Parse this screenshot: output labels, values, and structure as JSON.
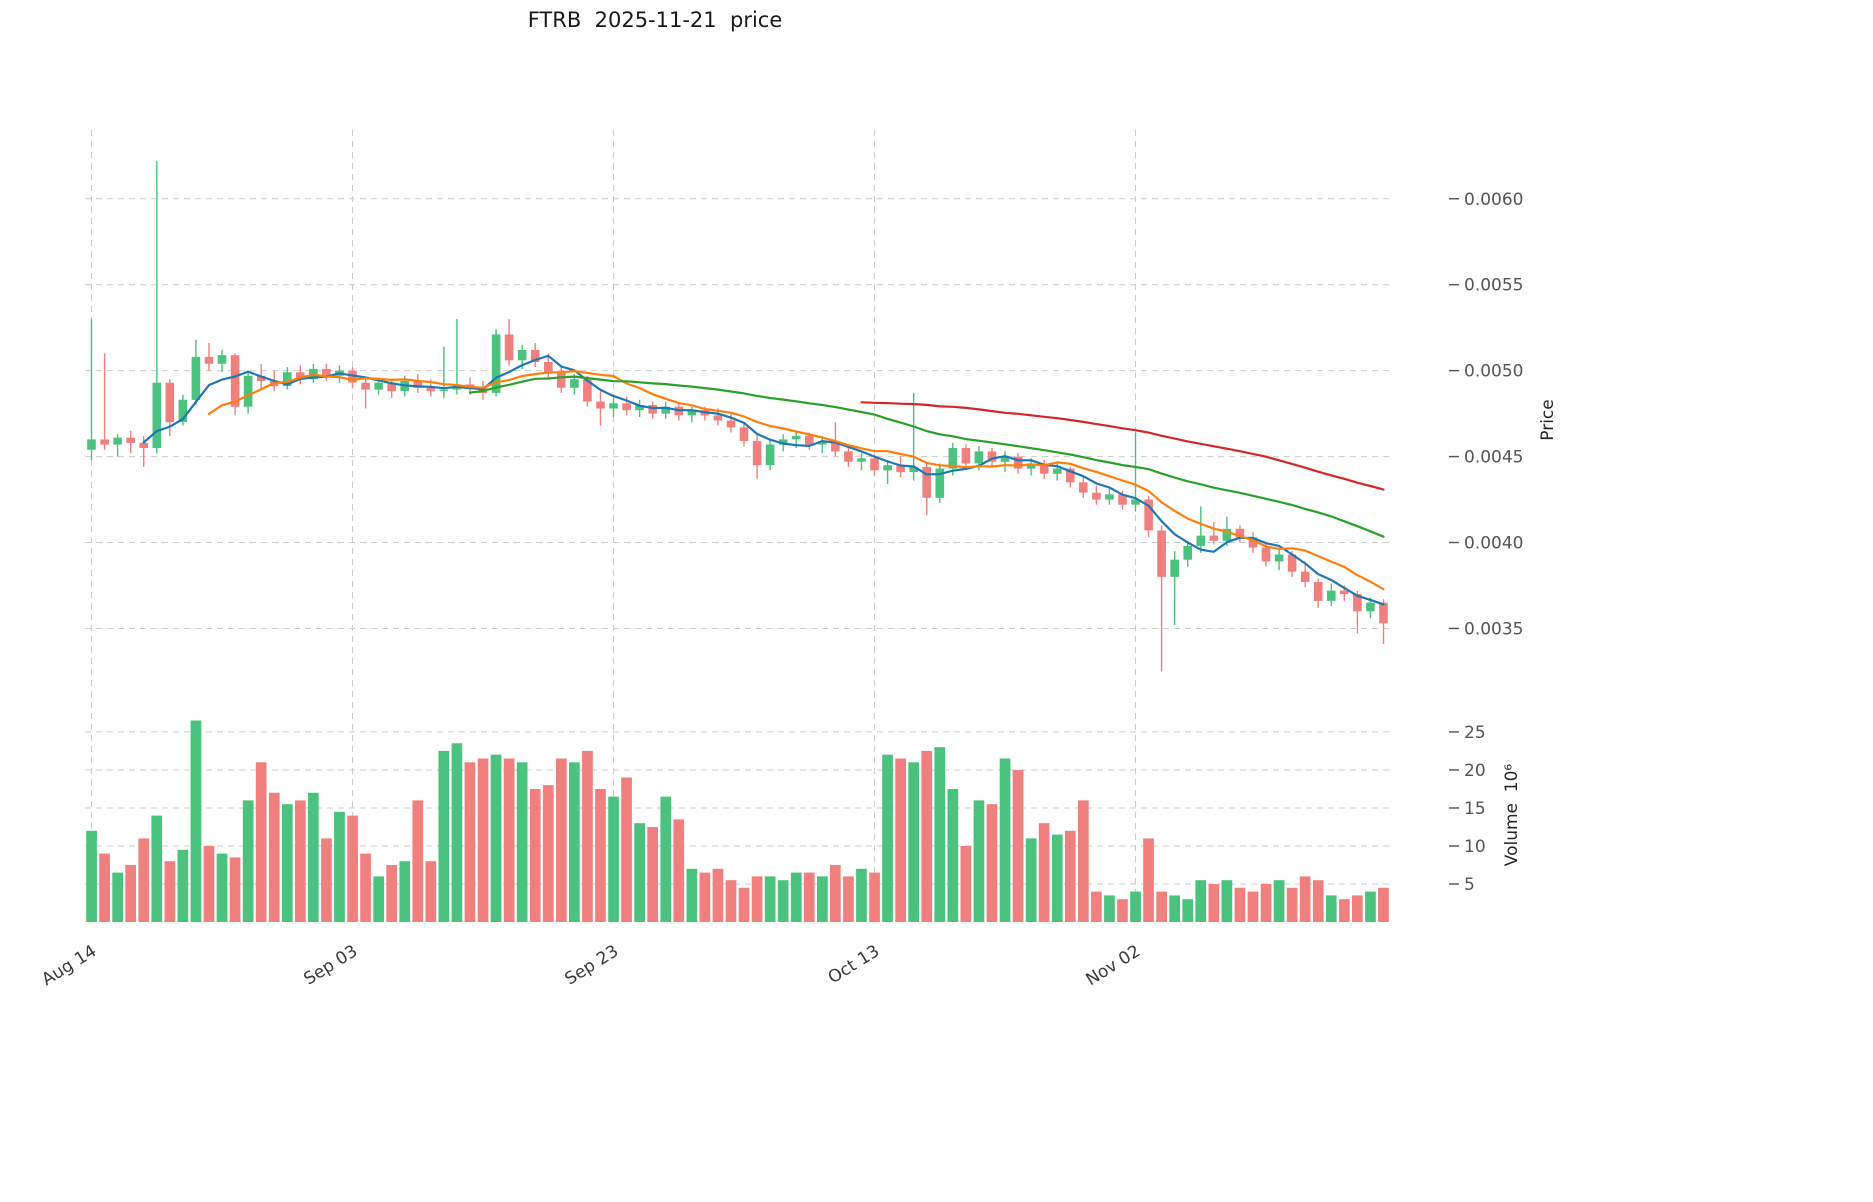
{
  "title": "FTRB  2025-11-21  price",
  "chart_data": {
    "type": "candlestick",
    "title": "FTRB  2025-11-21  price",
    "ylabel_price": "Price",
    "ylabel_volume": "Volume  10⁶",
    "legend_position": "none",
    "grid": "dashed",
    "grid_color": "#cccccc",
    "tick_color": "#555555",
    "up_color": "#4bc27d",
    "down_color": "#f0807e",
    "price_range": [
      0.0032,
      0.0064
    ],
    "price_ticks": [
      0.0035,
      0.004,
      0.0045,
      0.005,
      0.0055,
      0.006
    ],
    "volume_range": [
      0,
      29.2
    ],
    "volume_ticks": [
      5,
      10,
      15,
      20,
      25
    ],
    "volume_units": "millions",
    "xticks": [
      {
        "index": 0,
        "label": "Aug 14"
      },
      {
        "index": 20,
        "label": "Sep 03"
      },
      {
        "index": 40,
        "label": "Sep 23"
      },
      {
        "index": 60,
        "label": "Oct 13"
      },
      {
        "index": 80,
        "label": "Nov 02"
      }
    ],
    "mav": [
      {
        "window": 5,
        "color": "#1f77b4"
      },
      {
        "window": 10,
        "color": "#ff7f0e"
      },
      {
        "window": 30,
        "color": "#2ca02c"
      },
      {
        "window": 60,
        "color": "#d62728"
      }
    ],
    "dates": [
      "2025-08-14",
      "2025-08-15",
      "2025-08-16",
      "2025-08-17",
      "2025-08-18",
      "2025-08-19",
      "2025-08-20",
      "2025-08-21",
      "2025-08-22",
      "2025-08-23",
      "2025-08-24",
      "2025-08-25",
      "2025-08-26",
      "2025-08-27",
      "2025-08-28",
      "2025-08-29",
      "2025-08-30",
      "2025-08-31",
      "2025-09-01",
      "2025-09-02",
      "2025-09-03",
      "2025-09-04",
      "2025-09-05",
      "2025-09-06",
      "2025-09-07",
      "2025-09-08",
      "2025-09-09",
      "2025-09-10",
      "2025-09-11",
      "2025-09-12",
      "2025-09-13",
      "2025-09-14",
      "2025-09-15",
      "2025-09-16",
      "2025-09-17",
      "2025-09-18",
      "2025-09-19",
      "2025-09-20",
      "2025-09-21",
      "2025-09-22",
      "2025-09-23",
      "2025-09-24",
      "2025-09-25",
      "2025-09-26",
      "2025-09-27",
      "2025-09-28",
      "2025-09-29",
      "2025-09-30",
      "2025-10-01",
      "2025-10-02",
      "2025-10-03",
      "2025-10-04",
      "2025-10-05",
      "2025-10-06",
      "2025-10-07",
      "2025-10-08",
      "2025-10-09",
      "2025-10-10",
      "2025-10-11",
      "2025-10-12",
      "2025-10-13",
      "2025-10-14",
      "2025-10-15",
      "2025-10-16",
      "2025-10-17",
      "2025-10-18",
      "2025-10-19",
      "2025-10-20",
      "2025-10-21",
      "2025-10-22",
      "2025-10-23",
      "2025-10-24",
      "2025-10-25",
      "2025-10-26",
      "2025-10-27",
      "2025-10-28",
      "2025-10-29",
      "2025-10-30",
      "2025-10-31",
      "2025-11-01",
      "2025-11-02",
      "2025-11-03",
      "2025-11-04",
      "2025-11-05",
      "2025-11-06",
      "2025-11-07",
      "2025-11-08",
      "2025-11-09",
      "2025-11-10",
      "2025-11-11",
      "2025-11-12",
      "2025-11-13",
      "2025-11-14",
      "2025-11-15",
      "2025-11-16",
      "2025-11-17",
      "2025-11-18",
      "2025-11-19",
      "2025-11-20",
      "2025-11-21"
    ],
    "ohlc": [
      [
        0.00454,
        0.0053,
        0.00448,
        0.0046
      ],
      [
        0.0046,
        0.0051,
        0.00454,
        0.00457
      ],
      [
        0.00457,
        0.00463,
        0.0045,
        0.00461
      ],
      [
        0.00461,
        0.00465,
        0.00452,
        0.00458
      ],
      [
        0.00458,
        0.00462,
        0.00444,
        0.00455
      ],
      [
        0.00455,
        0.00622,
        0.00452,
        0.00493
      ],
      [
        0.00493,
        0.00495,
        0.00462,
        0.0047
      ],
      [
        0.0047,
        0.00486,
        0.00468,
        0.00483
      ],
      [
        0.00483,
        0.00518,
        0.0048,
        0.00508
      ],
      [
        0.00508,
        0.00516,
        0.005,
        0.00504
      ],
      [
        0.00504,
        0.00512,
        0.00499,
        0.00509
      ],
      [
        0.00509,
        0.0051,
        0.00474,
        0.00479
      ],
      [
        0.00479,
        0.005,
        0.00475,
        0.00497
      ],
      [
        0.00497,
        0.00504,
        0.00489,
        0.00494
      ],
      [
        0.00494,
        0.005,
        0.00488,
        0.00491
      ],
      [
        0.00491,
        0.00502,
        0.00489,
        0.00499
      ],
      [
        0.00499,
        0.00503,
        0.00492,
        0.00495
      ],
      [
        0.00495,
        0.00504,
        0.00493,
        0.00501
      ],
      [
        0.00501,
        0.00504,
        0.00494,
        0.00497
      ],
      [
        0.00497,
        0.00503,
        0.00493,
        0.005
      ],
      [
        0.005,
        0.00502,
        0.0049,
        0.00493
      ],
      [
        0.00493,
        0.00496,
        0.00478,
        0.00489
      ],
      [
        0.00489,
        0.00496,
        0.00486,
        0.00493
      ],
      [
        0.00493,
        0.00495,
        0.00484,
        0.00488
      ],
      [
        0.00488,
        0.00497,
        0.00485,
        0.00494
      ],
      [
        0.00494,
        0.00498,
        0.00487,
        0.0049
      ],
      [
        0.0049,
        0.00495,
        0.00485,
        0.00488
      ],
      [
        0.00488,
        0.00514,
        0.00484,
        0.00489
      ],
      [
        0.00489,
        0.0053,
        0.00486,
        0.00492
      ],
      [
        0.00492,
        0.00496,
        0.00486,
        0.0049
      ],
      [
        0.0049,
        0.00494,
        0.00483,
        0.00487
      ],
      [
        0.00487,
        0.00524,
        0.00485,
        0.00521
      ],
      [
        0.00521,
        0.0053,
        0.00503,
        0.00506
      ],
      [
        0.00506,
        0.00515,
        0.00501,
        0.00512
      ],
      [
        0.00512,
        0.00516,
        0.00502,
        0.00505
      ],
      [
        0.00505,
        0.0051,
        0.00496,
        0.00499
      ],
      [
        0.00499,
        0.00502,
        0.00487,
        0.0049
      ],
      [
        0.0049,
        0.00498,
        0.00486,
        0.00495
      ],
      [
        0.00495,
        0.00497,
        0.00479,
        0.00482
      ],
      [
        0.00482,
        0.00488,
        0.00468,
        0.00478
      ],
      [
        0.00478,
        0.00484,
        0.00473,
        0.00481
      ],
      [
        0.00481,
        0.00485,
        0.00474,
        0.00477
      ],
      [
        0.00477,
        0.00483,
        0.00473,
        0.0048
      ],
      [
        0.0048,
        0.00482,
        0.00472,
        0.00475
      ],
      [
        0.00475,
        0.00482,
        0.00472,
        0.00479
      ],
      [
        0.00479,
        0.00481,
        0.00471,
        0.00474
      ],
      [
        0.00474,
        0.00479,
        0.0047,
        0.00477
      ],
      [
        0.00477,
        0.00479,
        0.00471,
        0.00474
      ],
      [
        0.00474,
        0.00478,
        0.00468,
        0.00471
      ],
      [
        0.00471,
        0.00475,
        0.00464,
        0.00467
      ],
      [
        0.00467,
        0.0047,
        0.00456,
        0.00459
      ],
      [
        0.00459,
        0.00463,
        0.00437,
        0.00445
      ],
      [
        0.00445,
        0.0046,
        0.00442,
        0.00457
      ],
      [
        0.00457,
        0.00463,
        0.00453,
        0.0046
      ],
      [
        0.0046,
        0.00464,
        0.00455,
        0.00462
      ],
      [
        0.00462,
        0.00464,
        0.00454,
        0.00457
      ],
      [
        0.00457,
        0.00462,
        0.00452,
        0.00459
      ],
      [
        0.00459,
        0.0047,
        0.0045,
        0.00453
      ],
      [
        0.00453,
        0.00456,
        0.00444,
        0.00447
      ],
      [
        0.00447,
        0.00452,
        0.00442,
        0.00449
      ],
      [
        0.00449,
        0.00451,
        0.00439,
        0.00442
      ],
      [
        0.00442,
        0.00448,
        0.00434,
        0.00445
      ],
      [
        0.00445,
        0.0045,
        0.00438,
        0.00441
      ],
      [
        0.00441,
        0.00487,
        0.00436,
        0.00444
      ],
      [
        0.00444,
        0.00446,
        0.00416,
        0.00426
      ],
      [
        0.00426,
        0.00446,
        0.00423,
        0.00443
      ],
      [
        0.00443,
        0.00458,
        0.00439,
        0.00455
      ],
      [
        0.00455,
        0.00457,
        0.00443,
        0.00446
      ],
      [
        0.00446,
        0.00456,
        0.00442,
        0.00453
      ],
      [
        0.00453,
        0.00455,
        0.00444,
        0.00447
      ],
      [
        0.00447,
        0.00453,
        0.00441,
        0.0045
      ],
      [
        0.0045,
        0.00452,
        0.0044,
        0.00443
      ],
      [
        0.00443,
        0.00449,
        0.00439,
        0.00446
      ],
      [
        0.00446,
        0.00448,
        0.00437,
        0.0044
      ],
      [
        0.0044,
        0.00446,
        0.00436,
        0.00443
      ],
      [
        0.00443,
        0.00444,
        0.00432,
        0.00435
      ],
      [
        0.00435,
        0.00438,
        0.00426,
        0.00429
      ],
      [
        0.00429,
        0.00433,
        0.00422,
        0.00425
      ],
      [
        0.00425,
        0.00431,
        0.00422,
        0.00428
      ],
      [
        0.00428,
        0.0043,
        0.00419,
        0.00422
      ],
      [
        0.00422,
        0.00464,
        0.00418,
        0.00425
      ],
      [
        0.00425,
        0.00427,
        0.00403,
        0.00407
      ],
      [
        0.00407,
        0.0041,
        0.00325,
        0.0038
      ],
      [
        0.0038,
        0.00395,
        0.00352,
        0.0039
      ],
      [
        0.0039,
        0.00401,
        0.00386,
        0.00398
      ],
      [
        0.00398,
        0.00421,
        0.00394,
        0.00404
      ],
      [
        0.00404,
        0.00412,
        0.00399,
        0.00401
      ],
      [
        0.00401,
        0.00415,
        0.00398,
        0.00408
      ],
      [
        0.00408,
        0.0041,
        0.004,
        0.00403
      ],
      [
        0.00403,
        0.00406,
        0.00394,
        0.00397
      ],
      [
        0.00397,
        0.004,
        0.00386,
        0.00389
      ],
      [
        0.00389,
        0.00396,
        0.00384,
        0.00393
      ],
      [
        0.00393,
        0.00395,
        0.0038,
        0.00383
      ],
      [
        0.00383,
        0.00389,
        0.00374,
        0.00377
      ],
      [
        0.00377,
        0.00379,
        0.00362,
        0.00366
      ],
      [
        0.00366,
        0.00376,
        0.00363,
        0.00372
      ],
      [
        0.00372,
        0.00375,
        0.00366,
        0.0037
      ],
      [
        0.0037,
        0.00372,
        0.00347,
        0.0036
      ],
      [
        0.0036,
        0.00368,
        0.00356,
        0.00365
      ],
      [
        0.00365,
        0.00367,
        0.00341,
        0.00353
      ]
    ],
    "volumes": [
      12,
      9,
      6.5,
      7.5,
      11,
      14,
      8,
      9.5,
      26.5,
      10,
      9,
      8.5,
      16,
      21,
      17,
      15.5,
      16,
      17,
      11,
      14.5,
      14,
      9,
      6,
      7.5,
      8,
      16,
      8,
      22.5,
      23.5,
      21,
      21.5,
      22,
      21.5,
      21,
      17.5,
      18,
      21.5,
      21,
      22.5,
      17.5,
      16.5,
      19,
      13,
      12.5,
      16.5,
      13.5,
      7,
      6.5,
      7,
      5.5,
      4.5,
      6,
      6,
      5.5,
      6.5,
      6.5,
      6,
      7.5,
      6,
      7,
      6.5,
      22,
      21.5,
      21,
      22.5,
      23,
      17.5,
      10,
      16,
      15.5,
      21.5,
      20,
      11,
      13,
      11.5,
      12,
      16,
      4,
      3.5,
      3,
      4,
      11,
      4,
      3.5,
      3,
      5.5,
      5,
      5.5,
      4.5,
      4,
      5,
      5.5,
      4.5,
      6,
      5.5,
      3.5,
      3,
      3.5,
      4,
      4.5
    ]
  }
}
